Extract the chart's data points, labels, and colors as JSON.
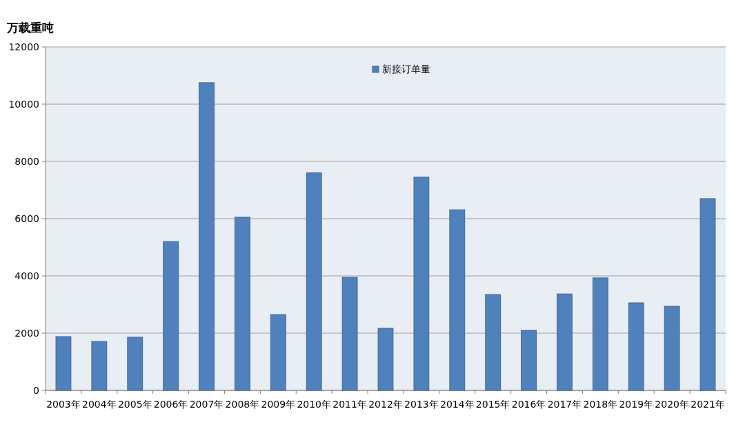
{
  "chart_data": {
    "type": "bar",
    "ylabel": "万载重吨",
    "categories": [
      "2003年",
      "2004年",
      "2005年",
      "2006年",
      "2007年",
      "2008年",
      "2009年",
      "2010年",
      "2011年",
      "2012年",
      "2013年",
      "2014年",
      "2015年",
      "2016年",
      "2017年",
      "2018年",
      "2019年",
      "2020年",
      "2021年"
    ],
    "series": [
      {
        "name": "新接订单量",
        "color": "#4f81bd",
        "values": [
          1880,
          1710,
          1860,
          5200,
          10750,
          6050,
          2650,
          7600,
          3950,
          2170,
          7450,
          6310,
          3350,
          2100,
          3370,
          3930,
          3060,
          2940,
          6700
        ]
      }
    ],
    "ylim": [
      0,
      12000
    ],
    "yticks": [
      0,
      2000,
      4000,
      6000,
      8000,
      10000,
      12000
    ],
    "grid": "y",
    "legend": "top"
  }
}
